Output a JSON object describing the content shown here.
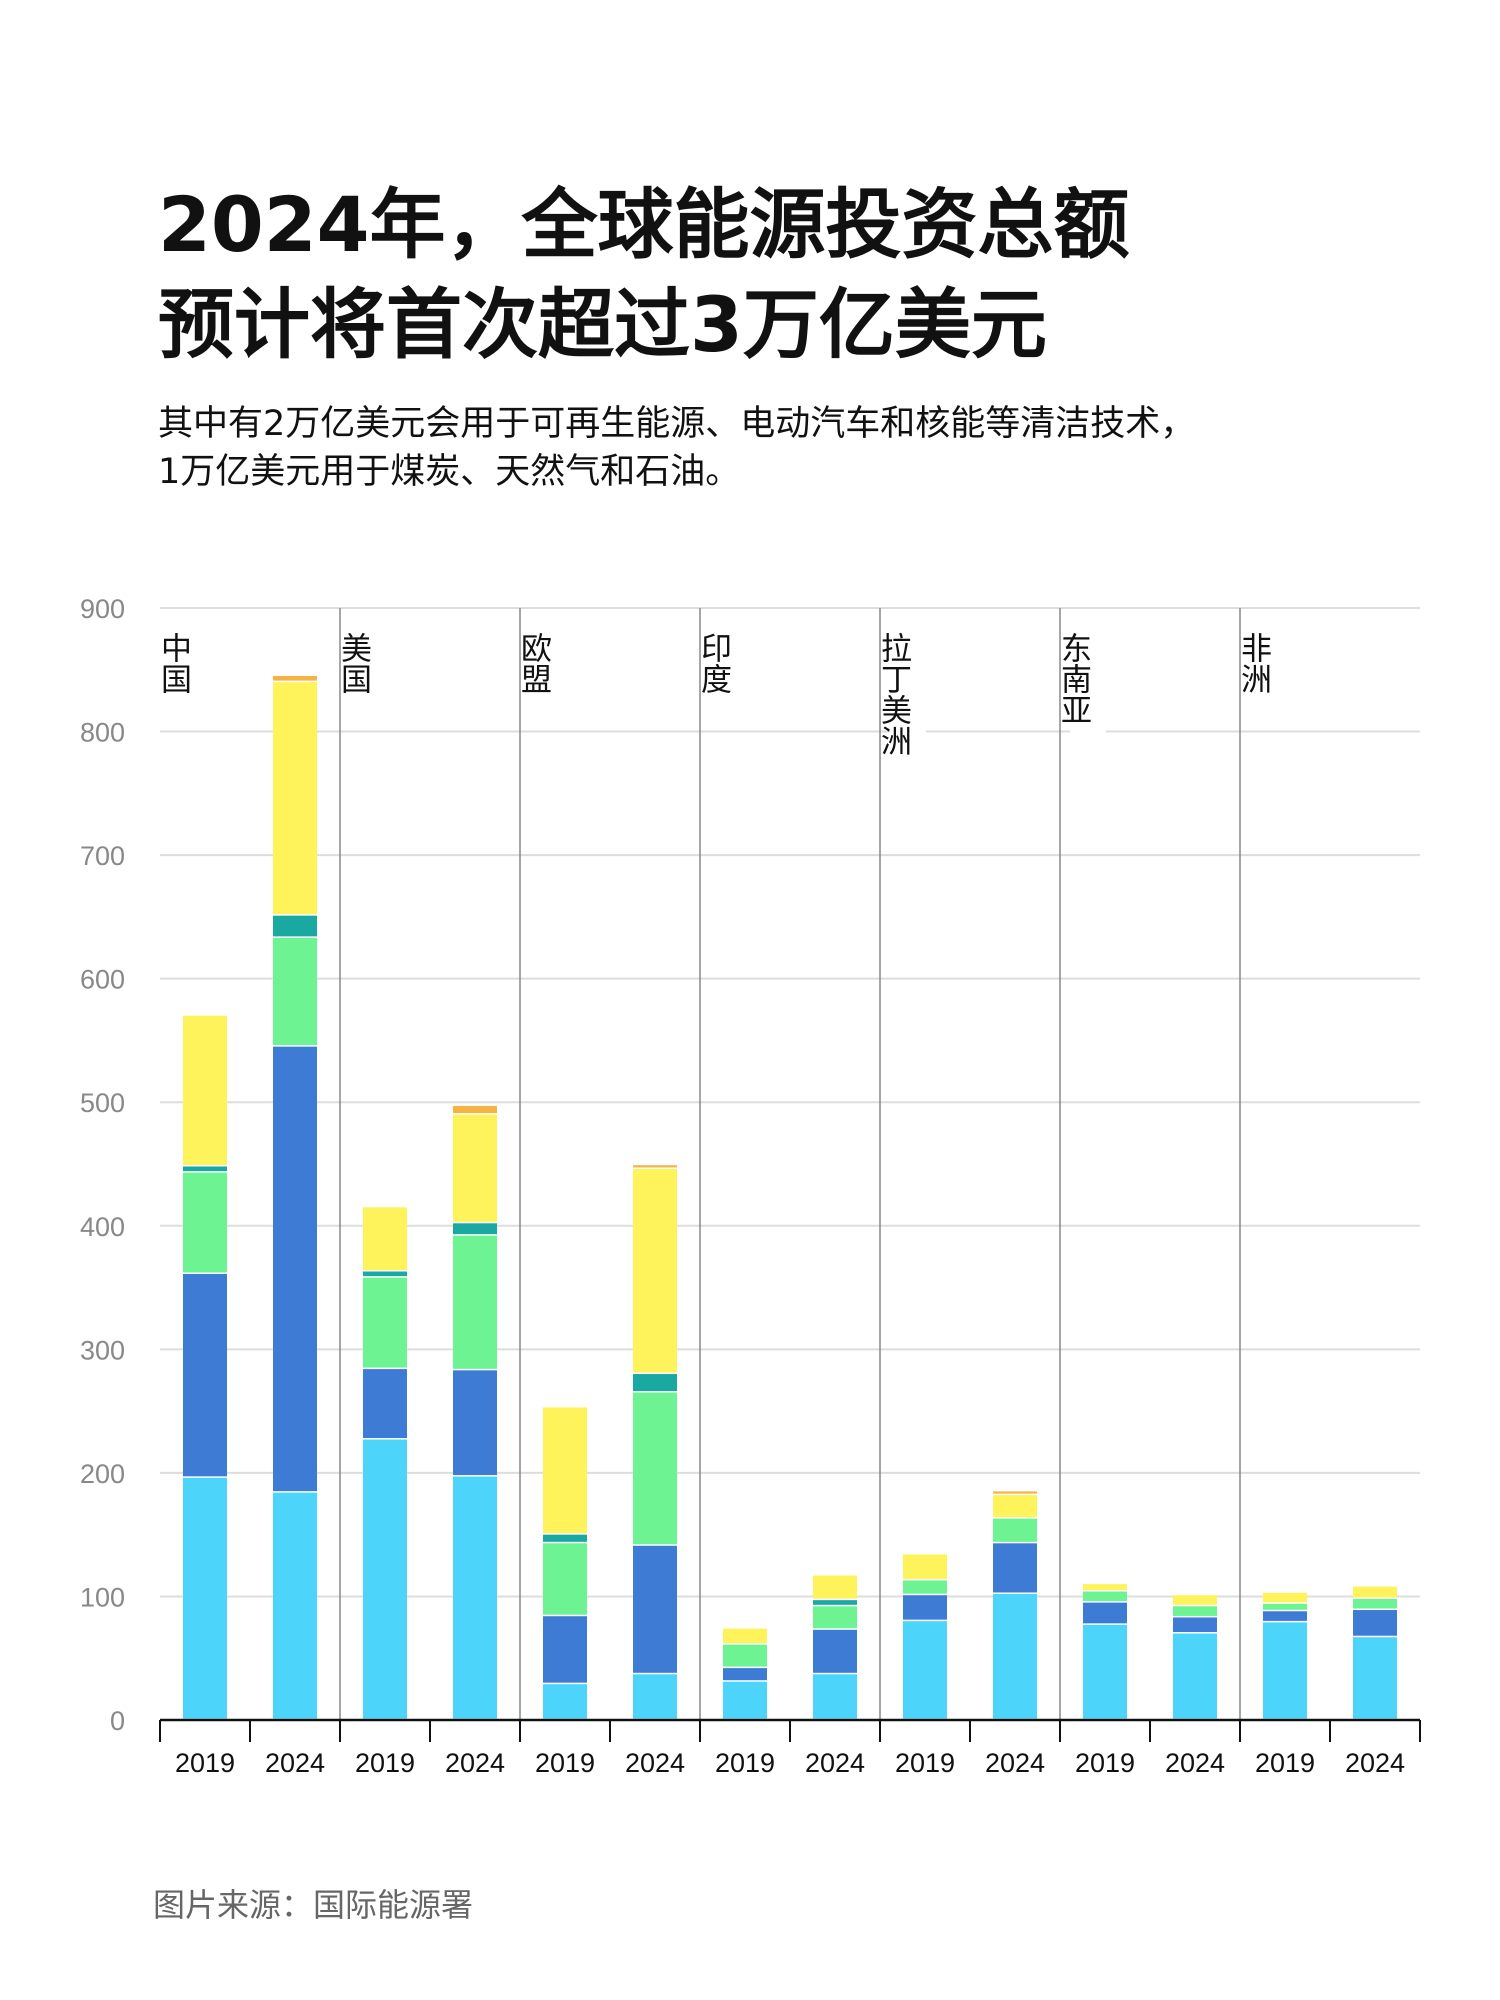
{
  "title": {
    "line1": "2024年，全球能源投资总额",
    "line2": "预计将首次超过3万亿美元"
  },
  "subtitle": {
    "line1": "其中有2万亿美元会用于可再生能源、电动汽车和核能等清洁技术，",
    "line2": "1万亿美元用于煤炭、天然气和石油。"
  },
  "source": "图片来源：国际能源署",
  "colors": {
    "s1": "#4dd4fa",
    "s2": "#3e7bd5",
    "s3": "#6ef392",
    "s4": "#1aa9a2",
    "s5": "#fff35c",
    "s6": "#f7b244",
    "grid": "#dddddd",
    "axis": "#111111",
    "separator": "#888888",
    "tick": "#888888"
  },
  "chart_data": {
    "type": "bar",
    "stacked": true,
    "ylim": [
      0,
      900
    ],
    "yticks": [
      0,
      100,
      200,
      300,
      400,
      500,
      600,
      700,
      800,
      900
    ],
    "grid": true,
    "groups": [
      "中国",
      "美国",
      "欧盟",
      "印度",
      "拉丁美洲",
      "东南亚",
      "非洲"
    ],
    "years": [
      "2019",
      "2024"
    ],
    "series": [
      {
        "color": "#4dd4fa",
        "values": [
          196,
          184,
          227,
          197,
          29,
          37,
          31,
          37,
          80,
          102,
          77,
          70,
          79,
          67
        ]
      },
      {
        "color": "#3e7bd5",
        "values": [
          165,
          361,
          57,
          86,
          55,
          104,
          11,
          36,
          21,
          41,
          18,
          13,
          9,
          22
        ]
      },
      {
        "color": "#6ef392",
        "values": [
          82,
          88,
          74,
          109,
          59,
          124,
          19,
          19,
          12,
          20,
          9,
          9,
          6,
          9
        ]
      },
      {
        "color": "#1aa9a2",
        "values": [
          5,
          18,
          5,
          10,
          7,
          15,
          0,
          5,
          0,
          0,
          0,
          0,
          0,
          0
        ]
      },
      {
        "color": "#fff35c",
        "values": [
          122,
          189,
          52,
          88,
          103,
          166,
          13,
          20,
          21,
          19,
          6,
          9,
          9,
          10
        ]
      },
      {
        "color": "#f7b244",
        "values": [
          0,
          5,
          0,
          7,
          0,
          3,
          0,
          0,
          0,
          3,
          0,
          0,
          0,
          0
        ]
      }
    ]
  }
}
